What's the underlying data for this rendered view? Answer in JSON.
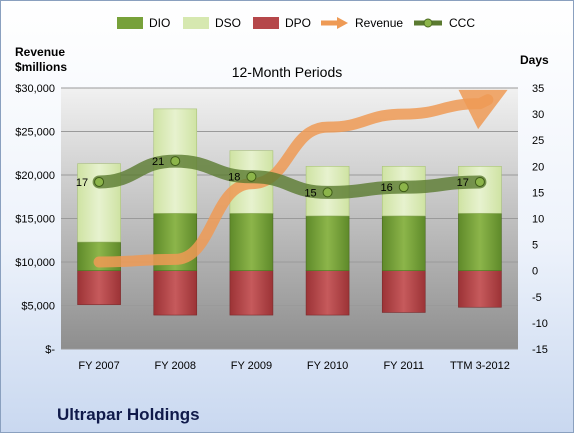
{
  "chart_data": {
    "type": "bar",
    "title": "12-Month Periods",
    "company": "Ultrapar Holdings",
    "left_axis": {
      "label_line1": "Revenue",
      "label_line2": "$millions",
      "ylim": [
        0,
        30000
      ],
      "ticks": [
        0,
        5000,
        10000,
        15000,
        20000,
        25000,
        30000
      ],
      "tick_labels": [
        "$-",
        "$5,000",
        "$10,000",
        "$15,000",
        "$20,000",
        "$25,000",
        "$30,000"
      ]
    },
    "right_axis": {
      "label": "Days",
      "ylim": [
        -15,
        35
      ],
      "ticks": [
        -15,
        -10,
        -5,
        0,
        5,
        10,
        15,
        20,
        25,
        30,
        35
      ],
      "tick_labels": [
        "-15",
        "-10",
        "-5",
        "0",
        "5",
        "10",
        "15",
        "20",
        "25",
        "30",
        "35"
      ]
    },
    "categories": [
      "FY 2007",
      "FY 2008",
      "FY 2009",
      "FY 2010",
      "FY 2011",
      "TTM 3-2012"
    ],
    "series": [
      {
        "name": "DIO",
        "axis": "days",
        "values": [
          5.5,
          11,
          11,
          10.5,
          10.5,
          11
        ]
      },
      {
        "name": "DSO",
        "axis": "days",
        "values": [
          15,
          20,
          12,
          9.5,
          9.5,
          9
        ]
      },
      {
        "name": "DPO",
        "axis": "days",
        "values": [
          -6.5,
          -8.5,
          -8.5,
          -8.5,
          -8,
          -7
        ]
      },
      {
        "name": "Revenue",
        "axis": "millions",
        "values": [
          10000,
          10300,
          19000,
          25500,
          27000,
          28200
        ]
      },
      {
        "name": "CCC",
        "axis": "days",
        "values": [
          17,
          21,
          18,
          15,
          16,
          17
        ]
      }
    ],
    "ccc_labels": [
      "17",
      "21",
      "18",
      "15",
      "16",
      "17"
    ],
    "grid": true,
    "legend_position": "top",
    "colors": {
      "DIO": "#77a13a",
      "DSO": "#d6e8b0",
      "DPO": "#b5474a",
      "Revenue": "#ee9a55",
      "CCC": "#5a7a30",
      "plot_top": "#f1f1f1",
      "plot_bottom": "#8e8e8e"
    }
  }
}
